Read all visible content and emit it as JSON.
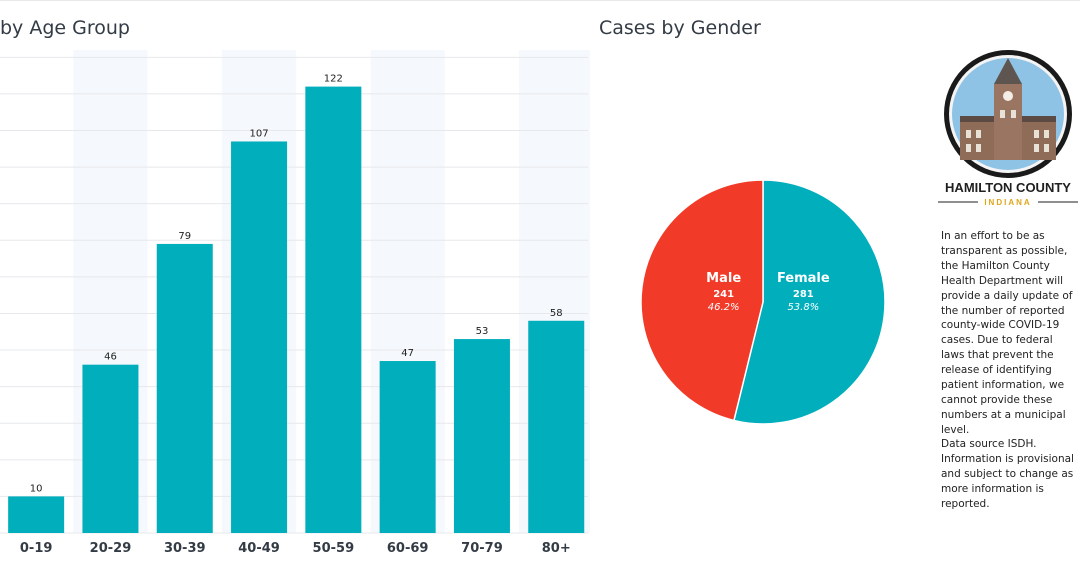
{
  "titles": {
    "age": "by Age Group",
    "gender": "Cases by Gender"
  },
  "chart_data": [
    {
      "type": "bar",
      "title": "by Age Group",
      "categories": [
        "0-19",
        "20-29",
        "30-39",
        "40-49",
        "50-59",
        "60-69",
        "70-79",
        "80+"
      ],
      "values": [
        10,
        46,
        79,
        107,
        122,
        47,
        53,
        58
      ],
      "ylim": [
        0,
        132
      ],
      "grid": true,
      "bar_color": "#00aebc",
      "band_color": "#f5f8fc"
    },
    {
      "type": "pie",
      "title": "Cases by Gender",
      "slices": [
        {
          "name": "Female",
          "value": 281,
          "percent": "53.8%",
          "color": "#00aebc"
        },
        {
          "name": "Male",
          "value": 241,
          "percent": "46.2%",
          "color": "#f23a29"
        }
      ]
    }
  ],
  "logo": {
    "title": "HAMILTON COUNTY",
    "subtitle": "INDIANA"
  },
  "sidebar": {
    "note": "In an effort to be as transparent as possible, the Hamilton County Health Department will provide a daily update of the number of reported county-wide COVID-19 cases. Due to federal laws that prevent the release of identifying patient information, we cannot provide these numbers at a municipal level.",
    "source": "Data source ISDH. Information is provisional and subject to change as more information is reported."
  }
}
